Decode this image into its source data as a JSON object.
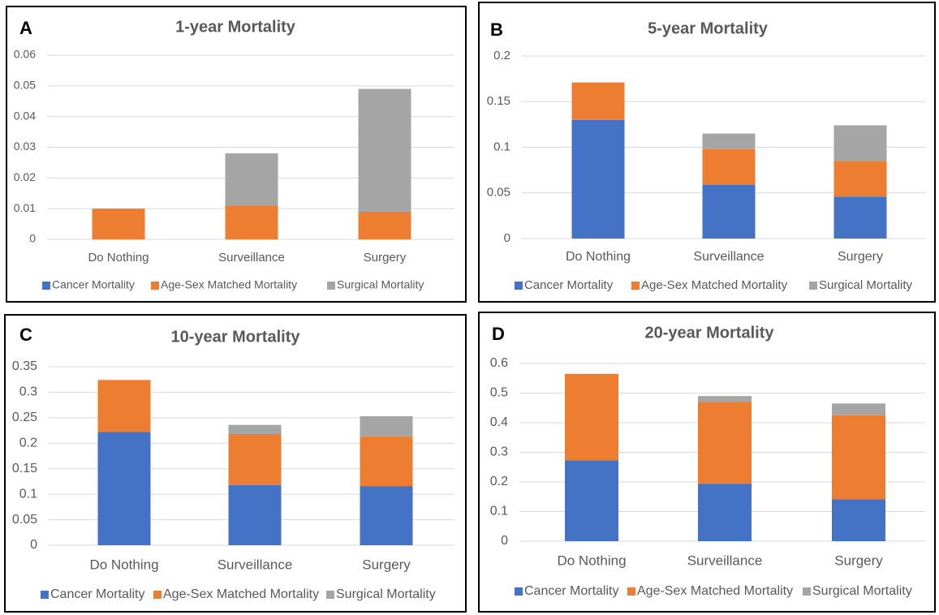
{
  "chart_data": [
    {
      "type": "stacked_bar",
      "label": "A",
      "title": "1-year Mortality",
      "categories": [
        "Do Nothing",
        "Surveillance",
        "Surgery"
      ],
      "series": [
        {
          "name": "Cancer Mortality",
          "color": "#4472c4",
          "values": [
            0,
            0,
            0
          ]
        },
        {
          "name": "Age-Sex Matched Mortality",
          "color": "#ed7d31",
          "values": [
            0.01,
            0.011,
            0.009
          ]
        },
        {
          "name": "Surgical Mortality",
          "color": "#a5a5a5",
          "values": [
            0,
            0.017,
            0.04
          ]
        }
      ],
      "ylim": [
        0,
        0.06
      ],
      "yticks": [
        0,
        0.01,
        0.02,
        0.03,
        0.04,
        0.05,
        0.06
      ],
      "grid": true,
      "legend": "bottom"
    },
    {
      "type": "stacked_bar",
      "label": "B",
      "title": "5-year Mortality",
      "categories": [
        "Do Nothing",
        "Surveillance",
        "Surgery"
      ],
      "series": [
        {
          "name": "Cancer Mortality",
          "color": "#4472c4",
          "values": [
            0.13,
            0.059,
            0.046
          ]
        },
        {
          "name": "Age-Sex Matched Mortality",
          "color": "#ed7d31",
          "values": [
            0.041,
            0.039,
            0.039
          ]
        },
        {
          "name": "Surgical Mortality",
          "color": "#a5a5a5",
          "values": [
            0,
            0.017,
            0.039
          ]
        }
      ],
      "ylim": [
        0,
        0.2
      ],
      "yticks": [
        0,
        0.05,
        0.1,
        0.15,
        0.2
      ],
      "grid": true,
      "legend": "bottom"
    },
    {
      "type": "stacked_bar",
      "label": "C",
      "title": "10-year Mortality",
      "categories": [
        "Do Nothing",
        "Surveillance",
        "Surgery"
      ],
      "series": [
        {
          "name": "Cancer Mortality",
          "color": "#4472c4",
          "values": [
            0.222,
            0.118,
            0.116
          ]
        },
        {
          "name": "Age-Sex Matched Mortality",
          "color": "#ed7d31",
          "values": [
            0.102,
            0.1,
            0.097
          ]
        },
        {
          "name": "Surgical Mortality",
          "color": "#a5a5a5",
          "values": [
            0,
            0.018,
            0.04
          ]
        }
      ],
      "ylim": [
        0,
        0.35
      ],
      "yticks": [
        0,
        0.05,
        0.1,
        0.15,
        0.2,
        0.25,
        0.3,
        0.35
      ],
      "grid": true,
      "legend": "bottom"
    },
    {
      "type": "stacked_bar",
      "label": "D",
      "title": "20-year Mortality",
      "categories": [
        "Do Nothing",
        "Surveillance",
        "Surgery"
      ],
      "series": [
        {
          "name": "Cancer Mortality",
          "color": "#4472c4",
          "values": [
            0.273,
            0.194,
            0.141
          ]
        },
        {
          "name": "Age-Sex Matched Mortality",
          "color": "#ed7d31",
          "values": [
            0.292,
            0.276,
            0.284
          ]
        },
        {
          "name": "Surgical Mortality",
          "color": "#a5a5a5",
          "values": [
            0,
            0.02,
            0.04
          ]
        }
      ],
      "ylim": [
        0,
        0.6
      ],
      "yticks": [
        0,
        0.1,
        0.2,
        0.3,
        0.4,
        0.5,
        0.6
      ],
      "grid": true,
      "legend": "bottom"
    }
  ]
}
